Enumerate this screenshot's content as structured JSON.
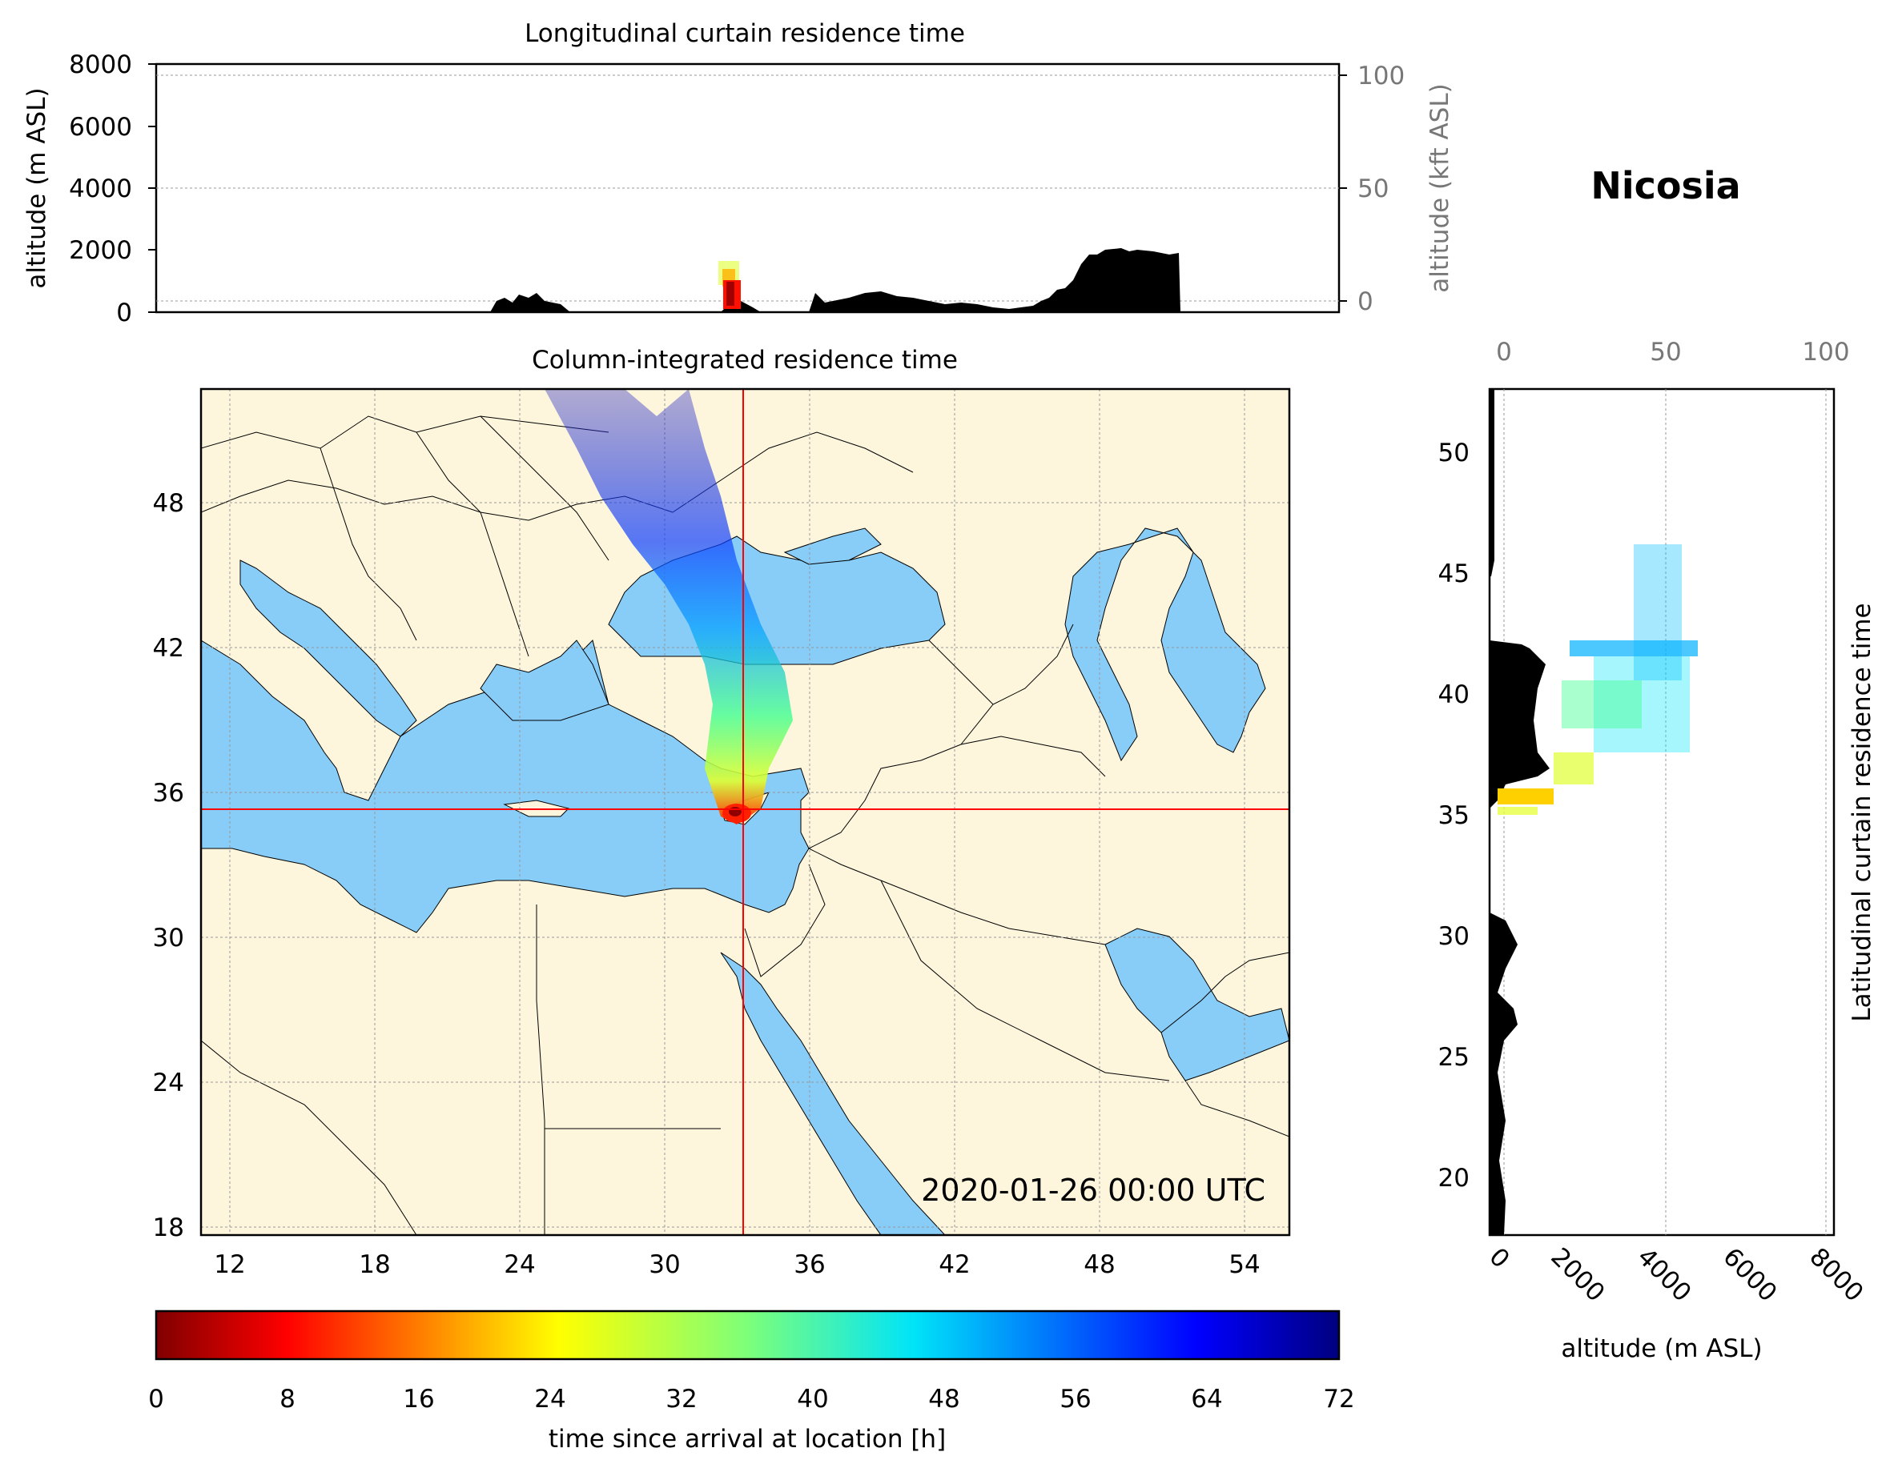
{
  "location": "Nicosia",
  "top_panel": {
    "title": "Longitudinal curtain residence time",
    "ylabel": "altitude (m ASL)",
    "ylabel_right": "altitude (kft ASL)",
    "yticks": [
      "0",
      "2000",
      "4000",
      "6000",
      "8000"
    ],
    "yticks_right": [
      "0",
      "50",
      "100"
    ]
  },
  "map_panel": {
    "title": "Column-integrated residence time",
    "timestamp": "2020-01-26 00:00 UTC",
    "xticks": [
      "12",
      "18",
      "24",
      "30",
      "36",
      "42",
      "48",
      "54"
    ],
    "yticks": [
      "18",
      "24",
      "30",
      "36",
      "42",
      "48"
    ],
    "colors": {
      "land": "#fdf5dc",
      "sea": "#88ccf8",
      "crosshair": "#ff0000"
    },
    "crosshair": {
      "lon": 33.4,
      "lat": 35.2
    }
  },
  "right_panel": {
    "title": "Latitudinal curtain residence time",
    "xlabel": "altitude (m ASL)",
    "xticks": [
      "0",
      "2000",
      "4000",
      "6000",
      "8000"
    ],
    "xticks_top": [
      "0",
      "50",
      "100"
    ],
    "yticks": [
      "20",
      "25",
      "30",
      "35",
      "40",
      "45",
      "50"
    ]
  },
  "colorbar": {
    "label": "time since arrival at location [h]",
    "ticks": [
      "0",
      "8",
      "16",
      "24",
      "32",
      "40",
      "48",
      "56",
      "64",
      "72"
    ],
    "cmap": "jet_r"
  }
}
